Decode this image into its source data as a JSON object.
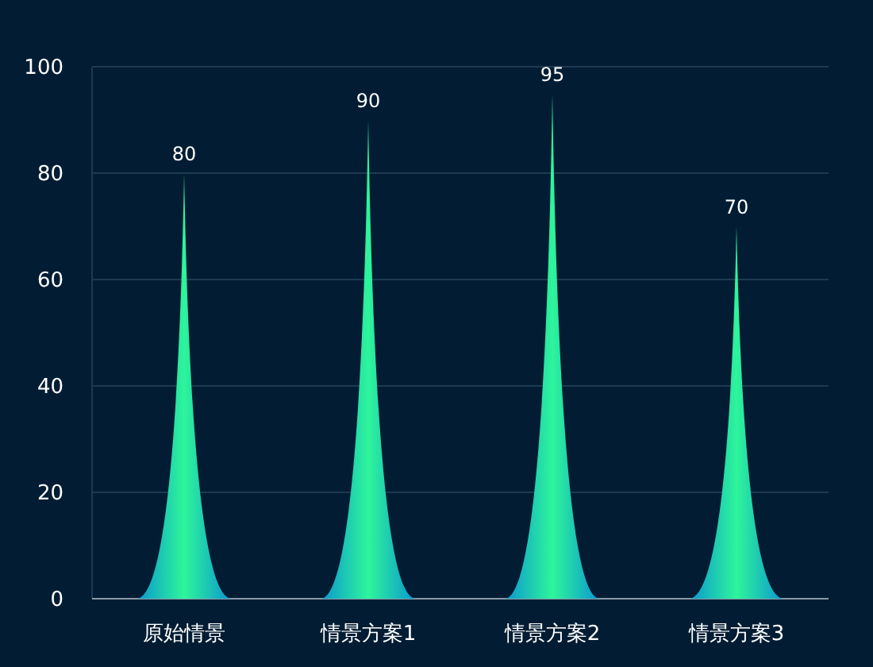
{
  "chart_data": {
    "type": "bar",
    "categories": [
      "原始情景",
      "情景方案1",
      "情景方案2",
      "情景方案3"
    ],
    "values": [
      80,
      90,
      95,
      70
    ],
    "color": "#2ef59a",
    "ylim": [
      0,
      100
    ],
    "yticks": [
      0,
      20,
      40,
      60,
      80,
      100
    ],
    "grid": "y",
    "data_labels": true
  }
}
